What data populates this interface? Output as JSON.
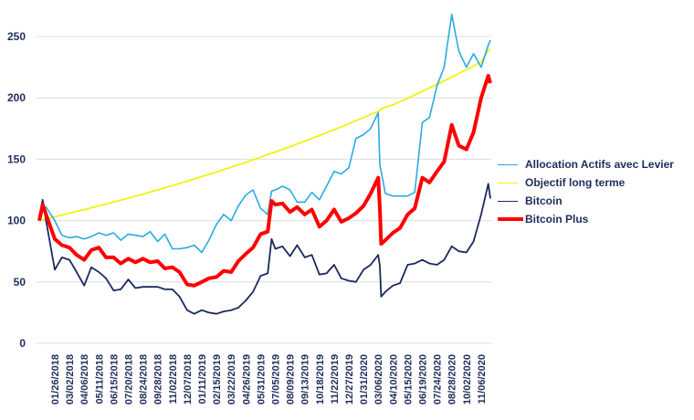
{
  "chart_data": {
    "type": "line",
    "title": "",
    "xlabel": "",
    "ylabel": "",
    "ylim": [
      0,
      250
    ],
    "yticks": [
      0,
      50,
      100,
      150,
      200,
      250
    ],
    "grid": "horizontal",
    "legend_position": "right",
    "xtick_labels": [
      "01/26/2018",
      "03/02/2018",
      "04/06/2018",
      "05/11/2018",
      "06/15/2018",
      "07/20/2018",
      "08/24/2018",
      "09/28/2018",
      "11/02/2018",
      "12/07/2018",
      "01/11/2019",
      "02/15/2019",
      "03/22/2019",
      "04/26/2019",
      "05/31/2019",
      "07/05/2019",
      "08/09/2019",
      "09/13/2019",
      "10/18/2019",
      "11/22/2019",
      "12/27/2019",
      "01/31/2020",
      "03/06/2020",
      "04/10/2020",
      "05/15/2020",
      "06/19/2020",
      "07/24/2020",
      "08/28/2020",
      "10/02/2020",
      "11/06/2020"
    ],
    "x": [
      "12/20/2017",
      "12/28/2017",
      "01/05/2018",
      "01/26/2018",
      "02/12/2018",
      "03/02/2018",
      "03/19/2018",
      "04/06/2018",
      "04/23/2018",
      "05/11/2018",
      "05/28/2018",
      "06/15/2018",
      "07/02/2018",
      "07/20/2018",
      "08/06/2018",
      "08/24/2018",
      "09/10/2018",
      "09/28/2018",
      "10/15/2018",
      "11/02/2018",
      "11/19/2018",
      "12/07/2018",
      "12/24/2018",
      "01/11/2019",
      "01/28/2019",
      "02/15/2019",
      "03/04/2019",
      "03/22/2019",
      "04/08/2019",
      "04/26/2019",
      "05/13/2019",
      "05/31/2019",
      "06/17/2019",
      "06/26/2019",
      "07/05/2019",
      "07/22/2019",
      "08/09/2019",
      "08/26/2019",
      "09/13/2019",
      "09/30/2019",
      "10/18/2019",
      "11/04/2019",
      "11/22/2019",
      "12/09/2019",
      "12/27/2019",
      "01/13/2020",
      "01/31/2020",
      "02/17/2020",
      "03/06/2020",
      "03/10/2020",
      "03/13/2020",
      "03/23/2020",
      "04/10/2020",
      "04/27/2020",
      "05/15/2020",
      "06/01/2020",
      "06/19/2020",
      "07/06/2020",
      "07/24/2020",
      "08/10/2020",
      "08/28/2020",
      "09/14/2020",
      "10/02/2020",
      "10/19/2020",
      "11/06/2020",
      "11/23/2020",
      "11/28/2020"
    ],
    "series": [
      {
        "name": "Allocation Actifs avec Levier",
        "color": "#29abe2",
        "values": [
          100,
          110,
          111,
          100,
          88,
          86,
          87,
          85,
          87,
          90,
          88,
          90,
          84,
          89,
          88,
          87,
          91,
          83,
          89,
          77,
          77,
          78,
          80,
          74,
          84,
          97,
          105,
          100,
          112,
          121,
          125,
          110,
          105,
          124,
          125,
          128,
          125,
          115,
          115,
          123,
          117,
          128,
          140,
          138,
          143,
          167,
          170,
          175,
          188,
          145,
          140,
          122,
          120,
          120,
          120,
          123,
          180,
          184,
          210,
          225,
          268,
          238,
          225,
          236,
          225,
          243,
          247
        ]
      },
      {
        "name": "Objectif long terme",
        "color": "#f2f20f",
        "values": [
          100,
          100.6,
          101.3,
          103.1,
          104.5,
          106,
          107.5,
          108.9,
          110.4,
          112,
          113.5,
          115.1,
          116.7,
          118.3,
          120,
          121.6,
          123.3,
          125,
          126.8,
          128.5,
          130.3,
          132.1,
          133.9,
          135.8,
          137.7,
          139.6,
          141.6,
          143.5,
          145.5,
          147.5,
          149.6,
          151.6,
          153.7,
          155,
          155.9,
          158,
          160.3,
          162.5,
          164.7,
          167,
          169.3,
          171.7,
          174,
          176.4,
          178.9,
          181.4,
          183.9,
          186.5,
          189,
          190,
          191,
          192.5,
          194.3,
          197,
          199.6,
          202.4,
          205.3,
          208.1,
          211.1,
          214,
          216.9,
          220,
          223,
          226.2,
          229.2,
          238.5,
          240
        ]
      },
      {
        "name": "Bitcoin",
        "color": "#1b2a5e",
        "values": [
          100,
          117,
          100,
          60,
          70,
          68,
          58,
          47,
          62,
          58,
          53,
          43,
          44,
          52,
          45,
          46,
          46,
          46,
          44,
          44,
          38,
          27,
          24,
          27,
          25,
          24,
          26,
          27,
          29,
          35,
          42,
          55,
          57,
          85,
          77,
          79,
          71,
          80,
          70,
          72,
          56,
          57,
          64,
          53,
          51,
          50,
          60,
          64,
          72,
          63,
          38,
          42,
          47,
          49,
          64,
          65,
          68,
          65,
          64,
          68,
          79,
          75,
          74,
          83,
          105,
          130,
          118
        ]
      },
      {
        "name": "Bitcoin Plus",
        "color": "#ff0000",
        "values": [
          100,
          113,
          105,
          85,
          80,
          78,
          72,
          68,
          76,
          78,
          70,
          70,
          65,
          69,
          66,
          69,
          66,
          67,
          61,
          62,
          58,
          48,
          47,
          50,
          53,
          54,
          59,
          58,
          67,
          73,
          78,
          89,
          91,
          116,
          113,
          114,
          107,
          111,
          105,
          109,
          95,
          100,
          109,
          99,
          102,
          106,
          112,
          122,
          135,
          110,
          81,
          84,
          90,
          94,
          105,
          110,
          135,
          131,
          140,
          148,
          178,
          161,
          158,
          172,
          200,
          218,
          212
        ]
      }
    ]
  }
}
